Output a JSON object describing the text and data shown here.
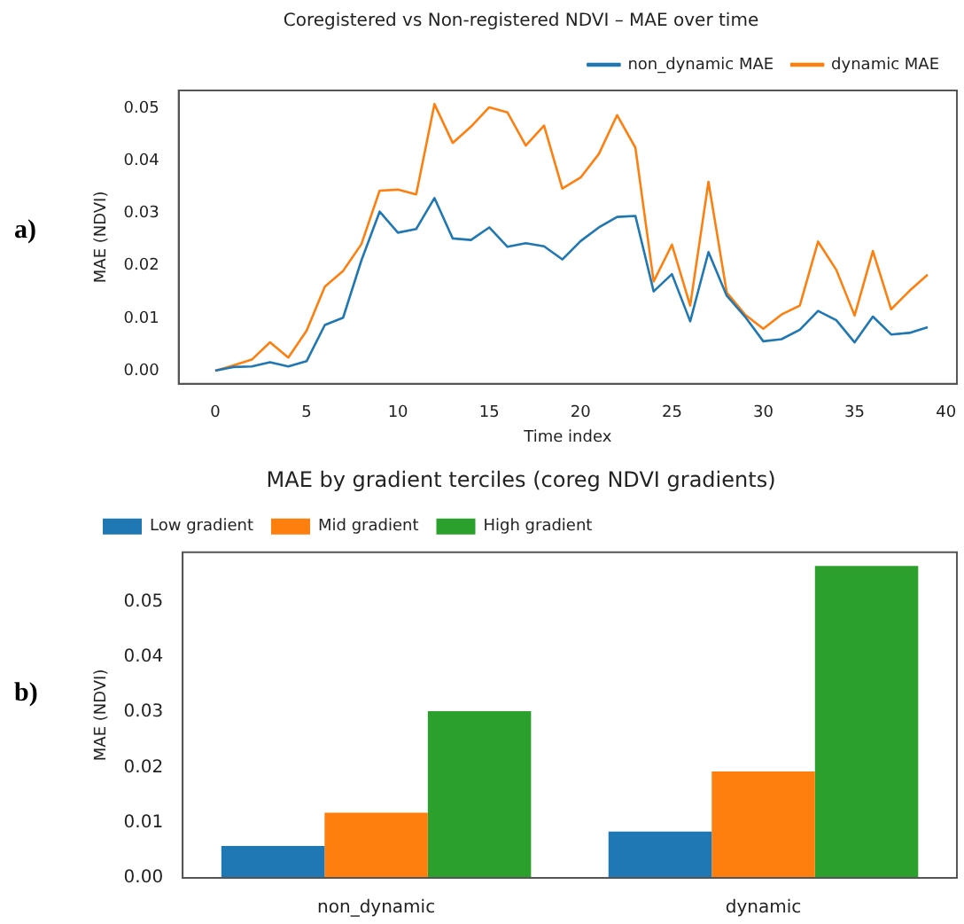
{
  "chart_data": [
    {
      "type": "line",
      "title": "Coregistered vs Non-registered NDVI – MAE over time",
      "xlabel": "Time index",
      "ylabel": "MAE (NDVI)",
      "annotations": [
        "a)"
      ],
      "x": [
        0,
        1,
        2,
        3,
        4,
        5,
        6,
        7,
        8,
        9,
        10,
        11,
        12,
        13,
        14,
        15,
        16,
        17,
        18,
        19,
        20,
        21,
        22,
        23,
        24,
        25,
        26,
        27,
        28,
        29,
        30,
        31,
        32,
        33,
        34,
        35,
        36,
        37,
        38,
        39
      ],
      "series": [
        {
          "name": "non_dynamic MAE",
          "color": "#1f77b4",
          "values": [
            0,
            0.0007,
            0.0008,
            0.0016,
            0.0008,
            0.0018,
            0.0087,
            0.0101,
            0.021,
            0.0303,
            0.0263,
            0.027,
            0.0329,
            0.0252,
            0.0249,
            0.0273,
            0.0236,
            0.0243,
            0.0237,
            0.0212,
            0.0247,
            0.0273,
            0.0293,
            0.0295,
            0.0151,
            0.0184,
            0.0094,
            0.0226,
            0.0143,
            0.0103,
            0.0056,
            0.006,
            0.0078,
            0.0114,
            0.0096,
            0.0054,
            0.0103,
            0.0069,
            0.0072,
            0.0083
          ]
        },
        {
          "name": "dynamic MAE",
          "color": "#ff7f0e",
          "values": [
            0,
            0.001,
            0.0021,
            0.0054,
            0.0025,
            0.0076,
            0.016,
            0.019,
            0.0241,
            0.0343,
            0.0345,
            0.0336,
            0.0508,
            0.0434,
            0.0465,
            0.0502,
            0.0492,
            0.0429,
            0.0467,
            0.0347,
            0.0368,
            0.0413,
            0.0487,
            0.0425,
            0.017,
            0.024,
            0.0124,
            0.036,
            0.0149,
            0.0107,
            0.008,
            0.0107,
            0.0124,
            0.0246,
            0.0192,
            0.0105,
            0.0228,
            0.0117,
            0.0152,
            0.0183
          ]
        }
      ],
      "xlim": [
        -2,
        40.6
      ],
      "xticks": [
        0,
        5,
        10,
        15,
        20,
        25,
        30,
        35,
        40
      ],
      "ylim": [
        -0.0025,
        0.0534
      ],
      "yticks": [
        {
          "value": 0,
          "label": "0.00"
        },
        {
          "value": 0.01,
          "label": "0.01"
        },
        {
          "value": 0.02,
          "label": "0.02"
        },
        {
          "value": 0.03,
          "label": "0.03"
        },
        {
          "value": 0.04,
          "label": "0.04"
        },
        {
          "value": 0.05,
          "label": "0.05"
        }
      ],
      "legend": "top right",
      "grid": false,
      "marker": "none",
      "line_style": "solid"
    },
    {
      "type": "bar",
      "title": "MAE by gradient terciles (coreg NDVI gradients)",
      "ylabel": "MAE (NDVI)",
      "annotations": [
        "b)"
      ],
      "categories": [
        "non_dynamic",
        "dynamic"
      ],
      "series": [
        {
          "name": "Low gradient",
          "color": "#1f77b4",
          "values": [
            0.0058,
            0.0084
          ]
        },
        {
          "name": "Mid gradient",
          "color": "#ff7f0e",
          "values": [
            0.0118,
            0.0193
          ]
        },
        {
          "name": "High gradient",
          "color": "#2ca02c",
          "values": [
            0.0302,
            0.0565
          ]
        }
      ],
      "ylim": [
        0,
        0.059
      ],
      "yticks": [
        {
          "value": 0,
          "label": "0.00"
        },
        {
          "value": 0.01,
          "label": "0.01"
        },
        {
          "value": 0.02,
          "label": "0.02"
        },
        {
          "value": 0.03,
          "label": "0.03"
        },
        {
          "value": 0.04,
          "label": "0.04"
        },
        {
          "value": 0.05,
          "label": "0.05"
        }
      ],
      "legend": "top left",
      "grid": false
    }
  ]
}
